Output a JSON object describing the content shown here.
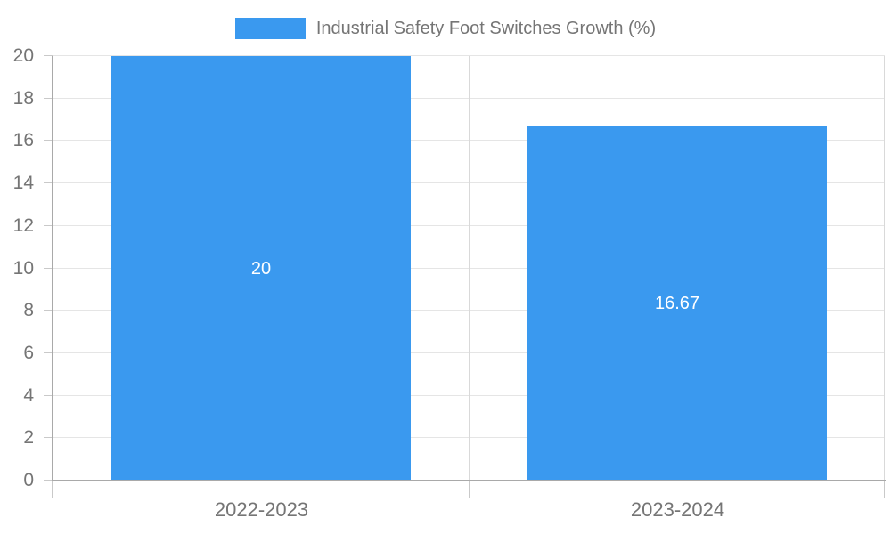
{
  "chart_data": {
    "type": "bar",
    "title": "Industrial Safety Foot Switches Growth (%)",
    "categories": [
      "2022-2023",
      "2023-2024"
    ],
    "values": [
      20,
      16.67
    ],
    "value_labels": [
      "20",
      "16.67"
    ],
    "yticks": [
      0,
      2,
      4,
      6,
      8,
      10,
      12,
      14,
      16,
      18,
      20
    ],
    "ylim": [
      0,
      20
    ],
    "grid": true,
    "legend_position": "top",
    "bar_color": "#3A99EF",
    "value_label_color": "#FFFFFF"
  },
  "colors": {
    "background": "#FFFFFF",
    "axis_line": "#A9A9A9",
    "grid_line": "#E5E5E5",
    "grid_line_vertical": "#D9D9D9",
    "tick": "#C9C9C9",
    "label_text": "#757575"
  }
}
